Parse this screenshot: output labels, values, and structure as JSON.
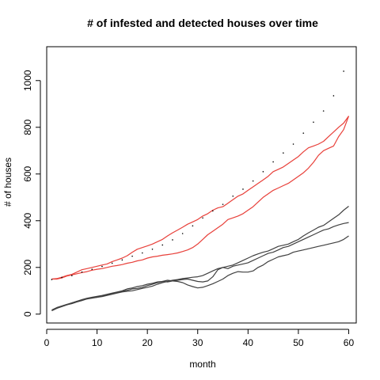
{
  "chart_data": {
    "type": "line",
    "title": "# of infested and detected houses over time",
    "xlabel": "month",
    "ylabel": "# of houses",
    "xlim": [
      0,
      61.5
    ],
    "ylim": [
      -38,
      1145
    ],
    "xticks": [
      0,
      10,
      20,
      30,
      40,
      50,
      60
    ],
    "yticks": [
      0,
      200,
      400,
      600,
      800,
      1000
    ],
    "grid": false,
    "legend": "none",
    "series": [
      {
        "color": "#e8403a",
        "style": "solid",
        "x": [
          1,
          2,
          3,
          4,
          5,
          6,
          7,
          8,
          9,
          10,
          11,
          12,
          13,
          14,
          15,
          16,
          17,
          18,
          19,
          20,
          21,
          22,
          23,
          24,
          25,
          26,
          27,
          28,
          29,
          30,
          31,
          32,
          33,
          34,
          35,
          36,
          37,
          38,
          39,
          40,
          41,
          42,
          43,
          44,
          45,
          46,
          47,
          48,
          49,
          50,
          51,
          52,
          53,
          54,
          55,
          56,
          57,
          58,
          59,
          60
        ],
        "values": [
          150,
          152,
          158,
          165,
          170,
          180,
          190,
          195,
          200,
          205,
          210,
          215,
          225,
          232,
          240,
          250,
          265,
          278,
          285,
          292,
          300,
          310,
          320,
          335,
          348,
          360,
          372,
          385,
          395,
          405,
          420,
          430,
          445,
          455,
          460,
          475,
          490,
          505,
          515,
          530,
          545,
          560,
          575,
          590,
          610,
          620,
          630,
          645,
          660,
          675,
          695,
          712,
          720,
          728,
          740,
          760,
          780,
          800,
          818,
          848
        ]
      },
      {
        "color": "#e8403a",
        "style": "solid",
        "x": [
          1,
          2,
          3,
          4,
          5,
          6,
          7,
          8,
          9,
          10,
          11,
          12,
          13,
          14,
          15,
          16,
          17,
          18,
          19,
          20,
          21,
          22,
          23,
          24,
          25,
          26,
          27,
          28,
          29,
          30,
          31,
          32,
          33,
          34,
          35,
          36,
          37,
          38,
          39,
          40,
          41,
          42,
          43,
          44,
          45,
          46,
          47,
          48,
          49,
          50,
          51,
          52,
          53,
          54,
          55,
          56,
          57,
          58,
          59,
          60
        ],
        "values": [
          150,
          150,
          155,
          163,
          168,
          173,
          178,
          182,
          188,
          192,
          195,
          200,
          205,
          208,
          212,
          218,
          222,
          228,
          232,
          240,
          245,
          248,
          252,
          255,
          258,
          262,
          268,
          275,
          285,
          300,
          320,
          340,
          355,
          370,
          385,
          405,
          412,
          420,
          430,
          445,
          460,
          480,
          500,
          515,
          530,
          540,
          550,
          560,
          575,
          590,
          605,
          625,
          650,
          680,
          700,
          710,
          720,
          760,
          790,
          848
        ]
      },
      {
        "color": "#000000",
        "style": "dotted",
        "x": [
          1,
          2,
          3,
          4,
          5,
          6,
          7,
          8,
          9,
          10,
          11,
          12,
          13,
          14,
          15,
          16,
          17,
          18,
          19,
          20,
          21,
          22,
          23,
          24,
          25,
          26,
          27,
          28,
          29,
          30,
          31,
          32,
          33,
          34,
          35,
          36,
          37,
          38,
          39,
          40,
          41,
          42,
          43,
          44,
          45,
          46,
          47,
          48,
          49,
          50,
          51,
          52,
          53,
          54,
          55,
          56,
          57,
          58,
          59,
          60
        ],
        "values": [
          148,
          152,
          157,
          160,
          165,
          172,
          180,
          186,
          192,
          198,
          204,
          210,
          218,
          224,
          232,
          240,
          248,
          255,
          262,
          270,
          278,
          287,
          296,
          307,
          318,
          332,
          345,
          360,
          378,
          395,
          412,
          428,
          442,
          455,
          470,
          488,
          505,
          520,
          535,
          552,
          570,
          588,
          610,
          632,
          652,
          672,
          690,
          708,
          728,
          752,
          775,
          800,
          822,
          845,
          870,
          900,
          935,
          980,
          1040,
          1110
        ]
      },
      {
        "color": "#404040",
        "style": "solid",
        "x": [
          1,
          2,
          3,
          4,
          5,
          6,
          7,
          8,
          9,
          10,
          11,
          12,
          13,
          14,
          15,
          16,
          17,
          18,
          19,
          20,
          21,
          22,
          23,
          24,
          25,
          26,
          27,
          28,
          29,
          30,
          31,
          32,
          33,
          34,
          35,
          36,
          37,
          38,
          39,
          40,
          41,
          42,
          43,
          44,
          45,
          46,
          47,
          48,
          49,
          50,
          51,
          52,
          53,
          54,
          55,
          56,
          57,
          58,
          59,
          60
        ],
        "values": [
          15,
          25,
          32,
          40,
          48,
          55,
          60,
          65,
          68,
          72,
          75,
          80,
          85,
          90,
          95,
          98,
          100,
          105,
          110,
          115,
          120,
          128,
          135,
          140,
          145,
          148,
          152,
          155,
          158,
          160,
          165,
          175,
          185,
          195,
          200,
          205,
          210,
          220,
          230,
          240,
          250,
          258,
          265,
          270,
          280,
          290,
          295,
          300,
          310,
          320,
          335,
          348,
          360,
          372,
          380,
          395,
          410,
          425,
          445,
          462
        ]
      },
      {
        "color": "#404040",
        "style": "solid",
        "x": [
          1,
          2,
          3,
          4,
          5,
          6,
          7,
          8,
          9,
          10,
          11,
          12,
          13,
          14,
          15,
          16,
          17,
          18,
          19,
          20,
          21,
          22,
          23,
          24,
          25,
          26,
          27,
          28,
          29,
          30,
          31,
          32,
          33,
          34,
          35,
          36,
          37,
          38,
          39,
          40,
          41,
          42,
          43,
          44,
          45,
          46,
          47,
          48,
          49,
          50,
          51,
          52,
          53,
          54,
          55,
          56,
          57,
          58,
          59,
          60
        ],
        "values": [
          15,
          25,
          33,
          40,
          45,
          52,
          58,
          65,
          70,
          72,
          78,
          82,
          88,
          92,
          98,
          102,
          108,
          110,
          115,
          122,
          128,
          135,
          140,
          138,
          142,
          145,
          148,
          150,
          145,
          140,
          138,
          142,
          160,
          190,
          200,
          195,
          205,
          210,
          215,
          220,
          230,
          240,
          250,
          260,
          265,
          275,
          285,
          290,
          300,
          310,
          320,
          330,
          340,
          350,
          360,
          365,
          375,
          382,
          388,
          392
        ]
      },
      {
        "color": "#404040",
        "style": "solid",
        "x": [
          1,
          2,
          3,
          4,
          5,
          6,
          7,
          8,
          9,
          10,
          11,
          12,
          13,
          14,
          15,
          16,
          17,
          18,
          19,
          20,
          21,
          22,
          23,
          24,
          25,
          26,
          27,
          28,
          29,
          30,
          31,
          32,
          33,
          34,
          35,
          36,
          37,
          38,
          39,
          40,
          41,
          42,
          43,
          44,
          45,
          46,
          47,
          48,
          49,
          50,
          51,
          52,
          53,
          54,
          55,
          56,
          57,
          58,
          59,
          60
        ],
        "values": [
          18,
          28,
          35,
          42,
          48,
          55,
          62,
          68,
          72,
          76,
          80,
          85,
          90,
          95,
          100,
          108,
          112,
          118,
          122,
          128,
          132,
          138,
          140,
          145,
          142,
          140,
          135,
          125,
          118,
          112,
          115,
          122,
          130,
          140,
          150,
          165,
          175,
          182,
          180,
          180,
          185,
          200,
          210,
          225,
          235,
          245,
          250,
          255,
          265,
          270,
          275,
          280,
          285,
          290,
          295,
          300,
          305,
          310,
          320,
          335
        ]
      }
    ]
  }
}
